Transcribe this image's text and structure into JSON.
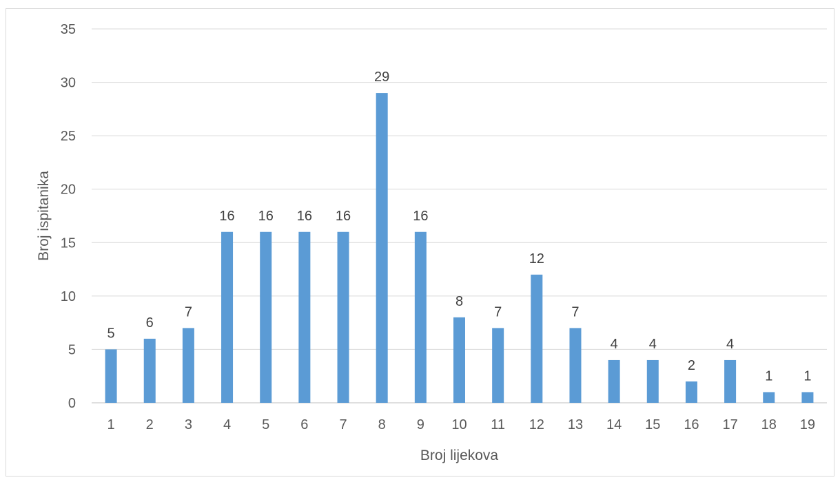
{
  "chart_data": {
    "type": "bar",
    "categories": [
      "1",
      "2",
      "3",
      "4",
      "5",
      "6",
      "7",
      "8",
      "9",
      "10",
      "11",
      "12",
      "13",
      "14",
      "15",
      "16",
      "17",
      "18",
      "19"
    ],
    "values": [
      5,
      6,
      7,
      16,
      16,
      16,
      16,
      29,
      16,
      8,
      7,
      12,
      7,
      4,
      4,
      2,
      4,
      1,
      1
    ],
    "xlabel": "Broj lijekova",
    "ylabel": "Broj ispitanika",
    "ylim": [
      0,
      35
    ],
    "yticks": [
      0,
      5,
      10,
      15,
      20,
      25,
      30,
      35
    ],
    "grid": true,
    "data_labels": true,
    "bar_color": "#5b9bd5",
    "grid_color": "#d9d9d9"
  }
}
